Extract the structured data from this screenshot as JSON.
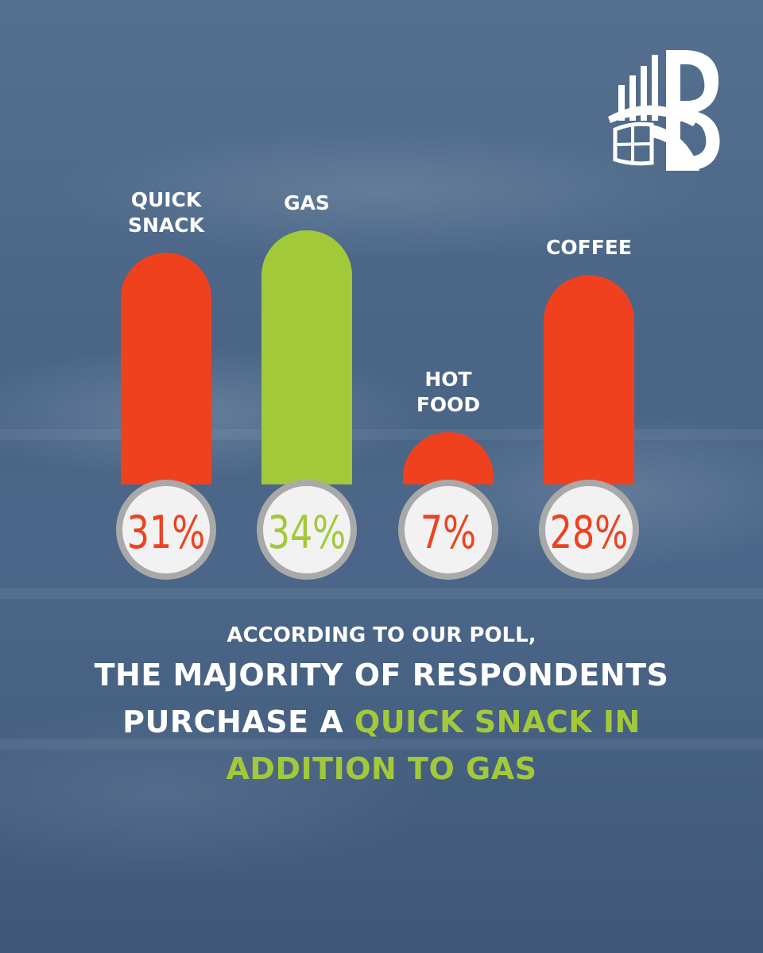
{
  "chart_data": {
    "type": "bar",
    "categories": [
      "QUICK\nSNACK",
      "GAS",
      "HOT\nFOOD",
      "COFFEE"
    ],
    "values": [
      31,
      34,
      7,
      28
    ],
    "value_labels": [
      "31%",
      "34%",
      "7%",
      "28%"
    ],
    "unit": "%",
    "colors": [
      "#f0411f",
      "#a2c93a",
      "#f0411f",
      "#f0411f"
    ],
    "ylim": [
      0,
      34
    ]
  },
  "caption": {
    "line1": "ACCORDING TO OUR POLL,",
    "line2": "THE MAJORITY OF RESPONDENTS",
    "line3_plain": "PURCHASE A ",
    "line3_highlight": "QUICK SNACK IN",
    "line4_highlight": "ADDITION TO GAS"
  },
  "logo": {
    "icon": "b-globe-logo-icon"
  },
  "colors": {
    "background": "#4b6688",
    "accent_red": "#f0411f",
    "accent_green": "#a2c93a",
    "circle_fill": "#f2f2f2",
    "circle_ring": "#a9a9a9"
  }
}
